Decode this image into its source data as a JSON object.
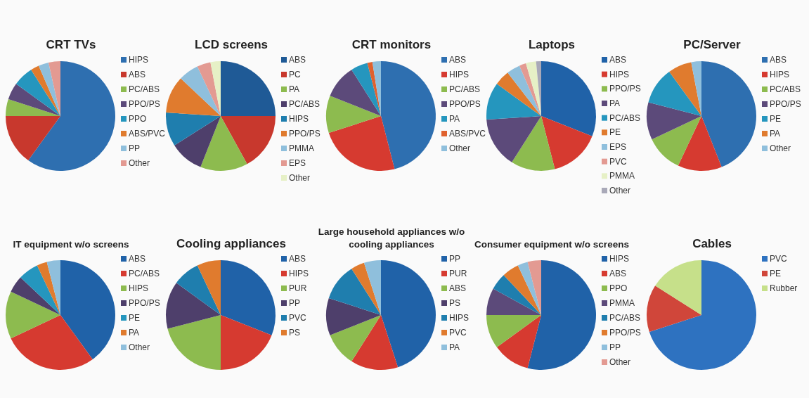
{
  "chart_data": [
    {
      "type": "pie",
      "title": "CRT TVs",
      "legend": "right",
      "categories": [
        "HIPS",
        "ABS",
        "PC/ABS",
        "PPO/PS",
        "PPO",
        "ABS/PVC",
        "PP",
        "Other"
      ],
      "values": [
        60,
        15,
        5,
        5,
        6,
        2.5,
        3,
        3.5
      ],
      "colors": [
        "#2e6fb0",
        "#c8382d",
        "#8dbb4f",
        "#5c4a7a",
        "#2596be",
        "#e07b2e",
        "#8fbfdc",
        "#e39a92"
      ]
    },
    {
      "type": "pie",
      "title": "LCD screens",
      "legend": "right",
      "categories": [
        "ABS",
        "PC",
        "PA",
        "PC/ABS",
        "HIPS",
        "PPO/PS",
        "PMMA",
        "EPS",
        "Other"
      ],
      "values": [
        25,
        17,
        14,
        10,
        10,
        11,
        6,
        4,
        3
      ],
      "colors": [
        "#1f5a96",
        "#c8382d",
        "#8dbb4f",
        "#4e3f6b",
        "#1f7eae",
        "#e07b2e",
        "#8fbfdc",
        "#e39a92",
        "#e6f0c6"
      ]
    },
    {
      "type": "pie",
      "title": "CRT monitors",
      "legend": "right",
      "categories": [
        "ABS",
        "HIPS",
        "PC/ABS",
        "PPO/PS",
        "PA",
        "ABS/PVC",
        "Other"
      ],
      "values": [
        46,
        24,
        11,
        10,
        5,
        1.5,
        2.5
      ],
      "colors": [
        "#2e6fb0",
        "#d63a30",
        "#8dbb4f",
        "#5c4a7a",
        "#2596be",
        "#e0612e",
        "#8fbfdc"
      ]
    },
    {
      "type": "pie",
      "title": "Laptops",
      "legend": "right",
      "categories": [
        "ABS",
        "HIPS",
        "PPO/PS",
        "PA",
        "PC/ABS",
        "PE",
        "EPS",
        "PVC",
        "PMMA",
        "Other"
      ],
      "values": [
        31,
        15,
        13,
        15,
        11,
        4.5,
        4,
        2,
        3,
        1.5
      ],
      "colors": [
        "#2062a8",
        "#d63a30",
        "#8dbb4f",
        "#5c4a7a",
        "#2596be",
        "#e07b2e",
        "#8fbfdc",
        "#e39a92",
        "#e6f0c6",
        "#a9a9b8"
      ]
    },
    {
      "type": "pie",
      "title": "PC/Server",
      "legend": "right",
      "categories": [
        "ABS",
        "HIPS",
        "PC/ABS",
        "PPO/PS",
        "PE",
        "PA",
        "Other"
      ],
      "values": [
        44,
        13,
        11,
        11,
        11,
        7,
        3
      ],
      "colors": [
        "#2e6fb0",
        "#d63a30",
        "#8dbb4f",
        "#5c4a7a",
        "#2596be",
        "#e07b2e",
        "#8fbfdc"
      ]
    },
    {
      "type": "pie",
      "title": "IT equipment w/o screens",
      "legend": "right",
      "categories": [
        "ABS",
        "PC/ABS",
        "HIPS",
        "PPO/PS",
        "PE",
        "PA",
        "Other"
      ],
      "values": [
        40,
        28,
        14,
        5,
        6,
        3,
        4
      ],
      "colors": [
        "#2062a8",
        "#d63a30",
        "#8dbb4f",
        "#4e3f6b",
        "#2596be",
        "#e07b2e",
        "#8fbfdc"
      ]
    },
    {
      "type": "pie",
      "title": "Cooling appliances",
      "legend": "right",
      "categories": [
        "ABS",
        "HIPS",
        "PUR",
        "PP",
        "PVC",
        "PS"
      ],
      "values": [
        31,
        19,
        21,
        14,
        8,
        7
      ],
      "colors": [
        "#2062a8",
        "#d63a30",
        "#8dbb4f",
        "#4e3f6b",
        "#1f7eae",
        "#e07b2e"
      ]
    },
    {
      "type": "pie",
      "title": "Large household appliances w/o cooling appliances",
      "legend": "right",
      "categories": [
        "PP",
        "PUR",
        "ABS",
        "PS",
        "HIPS",
        "PVC",
        "PA"
      ],
      "values": [
        45,
        14,
        10,
        11,
        11,
        4,
        5
      ],
      "colors": [
        "#2062a8",
        "#d63a30",
        "#8dbb4f",
        "#4e3f6b",
        "#1f7eae",
        "#e07b2e",
        "#8fbfdc"
      ]
    },
    {
      "type": "pie",
      "title": "Consumer equipment w/o screens",
      "legend": "right",
      "categories": [
        "HIPS",
        "ABS",
        "PPO",
        "PMMA",
        "PC/ABS",
        "PPO/PS",
        "PP",
        "Other"
      ],
      "values": [
        54,
        11,
        10,
        8,
        5,
        5,
        3,
        4
      ],
      "colors": [
        "#2062a8",
        "#d63a30",
        "#8dbb4f",
        "#5c4a7a",
        "#1f7eae",
        "#e07b2e",
        "#8fbfdc",
        "#e39a92"
      ]
    },
    {
      "type": "pie",
      "title": "Cables",
      "legend": "right",
      "categories": [
        "PVC",
        "PE",
        "Rubber"
      ],
      "values": [
        70,
        14,
        16
      ],
      "colors": [
        "#2e72c0",
        "#d0463a",
        "#c6e08a"
      ]
    }
  ]
}
